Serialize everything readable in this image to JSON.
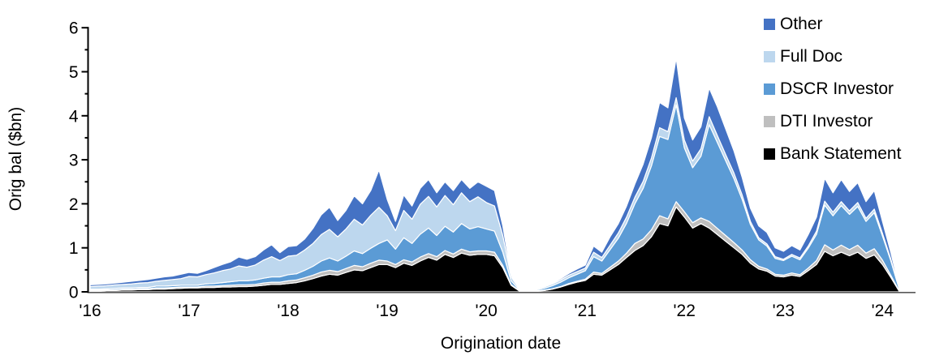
{
  "chart": {
    "y_axis": {
      "title": "Orig bal ($bn)",
      "ticks": [
        "0",
        "1",
        "2",
        "3",
        "4",
        "5",
        "6"
      ],
      "max": 6,
      "minor_step": 0.5
    },
    "x_axis": {
      "title": "Origination date",
      "tick_labels": [
        "'16",
        "'17",
        "'18",
        "'19",
        "'20",
        "'21",
        "'22",
        "'23",
        "'24"
      ]
    },
    "legend": [
      {
        "label": "Other",
        "color": "#4472C4"
      },
      {
        "label": "Full Doc",
        "color": "#BDD7EE"
      },
      {
        "label": "DSCR Investor",
        "color": "#5B9BD5"
      },
      {
        "label": "DTI Investor",
        "color": "#BFBFBF"
      },
      {
        "label": "Bank Statement",
        "color": "#000000"
      }
    ]
  },
  "chart_data": {
    "type": "area",
    "stacked": true,
    "title": "",
    "xlabel": "Origination date",
    "ylabel": "Orig bal ($bn)",
    "ylim": [
      0,
      6
    ],
    "grid": false,
    "legend_position": "top-right",
    "x": [
      "2016-01",
      "2016-02",
      "2016-03",
      "2016-04",
      "2016-05",
      "2016-06",
      "2016-07",
      "2016-08",
      "2016-09",
      "2016-10",
      "2016-11",
      "2016-12",
      "2017-01",
      "2017-02",
      "2017-03",
      "2017-04",
      "2017-05",
      "2017-06",
      "2017-07",
      "2017-08",
      "2017-09",
      "2017-10",
      "2017-11",
      "2017-12",
      "2018-01",
      "2018-02",
      "2018-03",
      "2018-04",
      "2018-05",
      "2018-06",
      "2018-07",
      "2018-08",
      "2018-09",
      "2018-10",
      "2018-11",
      "2018-12",
      "2019-01",
      "2019-02",
      "2019-03",
      "2019-04",
      "2019-05",
      "2019-06",
      "2019-07",
      "2019-08",
      "2019-09",
      "2019-10",
      "2019-11",
      "2019-12",
      "2020-01",
      "2020-02",
      "2020-03",
      "2020-04",
      "2020-05",
      "2020-06",
      "2020-07",
      "2020-08",
      "2020-09",
      "2020-10",
      "2020-11",
      "2020-12",
      "2021-01",
      "2021-02",
      "2021-03",
      "2021-04",
      "2021-05",
      "2021-06",
      "2021-07",
      "2021-08",
      "2021-09",
      "2021-10",
      "2021-11",
      "2021-12",
      "2022-01",
      "2022-02",
      "2022-03",
      "2022-04",
      "2022-05",
      "2022-06",
      "2022-07",
      "2022-08",
      "2022-09",
      "2022-10",
      "2022-11",
      "2022-12",
      "2023-01",
      "2023-02",
      "2023-03",
      "2023-04",
      "2023-05",
      "2023-06",
      "2023-07",
      "2023-08",
      "2023-09",
      "2023-10",
      "2023-11",
      "2023-12",
      "2024-01",
      "2024-02",
      "2024-03"
    ],
    "series": [
      {
        "name": "Bank Statement",
        "color": "#000000",
        "values": [
          0.02,
          0.02,
          0.03,
          0.03,
          0.04,
          0.04,
          0.05,
          0.05,
          0.06,
          0.06,
          0.07,
          0.08,
          0.09,
          0.09,
          0.1,
          0.1,
          0.11,
          0.11,
          0.12,
          0.12,
          0.13,
          0.15,
          0.17,
          0.17,
          0.19,
          0.21,
          0.25,
          0.3,
          0.36,
          0.4,
          0.38,
          0.44,
          0.5,
          0.48,
          0.55,
          0.62,
          0.62,
          0.55,
          0.65,
          0.6,
          0.7,
          0.78,
          0.72,
          0.85,
          0.78,
          0.88,
          0.83,
          0.85,
          0.85,
          0.82,
          0.55,
          0.15,
          0.02,
          0.01,
          0.02,
          0.03,
          0.06,
          0.11,
          0.17,
          0.22,
          0.26,
          0.4,
          0.38,
          0.5,
          0.62,
          0.78,
          0.94,
          1.05,
          1.25,
          1.55,
          1.5,
          1.93,
          1.7,
          1.45,
          1.55,
          1.45,
          1.3,
          1.15,
          1.0,
          0.85,
          0.65,
          0.52,
          0.47,
          0.36,
          0.34,
          0.38,
          0.35,
          0.48,
          0.62,
          0.92,
          0.82,
          0.9,
          0.82,
          0.9,
          0.76,
          0.84,
          0.62,
          0.33,
          0.02
        ]
      },
      {
        "name": "DTI Investor",
        "color": "#BFBFBF",
        "values": [
          0.02,
          0.02,
          0.02,
          0.02,
          0.02,
          0.02,
          0.02,
          0.02,
          0.03,
          0.03,
          0.03,
          0.03,
          0.02,
          0.02,
          0.03,
          0.03,
          0.03,
          0.04,
          0.04,
          0.04,
          0.04,
          0.05,
          0.05,
          0.05,
          0.06,
          0.06,
          0.07,
          0.08,
          0.09,
          0.09,
          0.08,
          0.09,
          0.1,
          0.09,
          0.1,
          0.1,
          0.08,
          0.07,
          0.08,
          0.08,
          0.09,
          0.09,
          0.08,
          0.09,
          0.08,
          0.09,
          0.08,
          0.08,
          0.08,
          0.08,
          0.05,
          0.02,
          0.01,
          0.01,
          0.01,
          0.01,
          0.01,
          0.01,
          0.02,
          0.02,
          0.03,
          0.05,
          0.04,
          0.06,
          0.08,
          0.1,
          0.16,
          0.15,
          0.16,
          0.18,
          0.16,
          0.12,
          0.12,
          0.12,
          0.13,
          0.15,
          0.14,
          0.13,
          0.12,
          0.1,
          0.08,
          0.06,
          0.05,
          0.04,
          0.04,
          0.05,
          0.04,
          0.06,
          0.09,
          0.15,
          0.13,
          0.16,
          0.14,
          0.16,
          0.12,
          0.14,
          0.1,
          0.05,
          0.01
        ]
      },
      {
        "name": "DSCR Investor",
        "color": "#5B9BD5",
        "values": [
          0.02,
          0.02,
          0.02,
          0.03,
          0.03,
          0.03,
          0.03,
          0.03,
          0.04,
          0.04,
          0.04,
          0.04,
          0.04,
          0.04,
          0.05,
          0.06,
          0.07,
          0.08,
          0.09,
          0.09,
          0.1,
          0.11,
          0.12,
          0.12,
          0.14,
          0.14,
          0.17,
          0.2,
          0.25,
          0.28,
          0.24,
          0.28,
          0.33,
          0.3,
          0.34,
          0.38,
          0.48,
          0.35,
          0.5,
          0.42,
          0.52,
          0.58,
          0.48,
          0.55,
          0.5,
          0.58,
          0.52,
          0.55,
          0.5,
          0.48,
          0.3,
          0.08,
          0.02,
          0.01,
          0.02,
          0.04,
          0.07,
          0.1,
          0.13,
          0.16,
          0.19,
          0.35,
          0.28,
          0.4,
          0.52,
          0.68,
          0.9,
          1.15,
          1.45,
          1.8,
          1.8,
          2.2,
          1.45,
          1.25,
          1.4,
          2.2,
          1.95,
          1.7,
          1.45,
          1.15,
          0.8,
          0.6,
          0.52,
          0.36,
          0.33,
          0.38,
          0.34,
          0.45,
          0.6,
          0.9,
          0.78,
          0.9,
          0.8,
          0.88,
          0.72,
          0.82,
          0.55,
          0.33,
          0.05
        ]
      },
      {
        "name": "Full Doc",
        "color": "#BDD7EE",
        "values": [
          0.06,
          0.07,
          0.07,
          0.08,
          0.08,
          0.09,
          0.1,
          0.11,
          0.11,
          0.13,
          0.14,
          0.15,
          0.2,
          0.19,
          0.21,
          0.24,
          0.27,
          0.29,
          0.34,
          0.31,
          0.34,
          0.41,
          0.46,
          0.37,
          0.42,
          0.42,
          0.46,
          0.52,
          0.6,
          0.65,
          0.55,
          0.62,
          0.72,
          0.65,
          0.75,
          0.82,
          0.55,
          0.42,
          0.62,
          0.55,
          0.68,
          0.72,
          0.65,
          0.7,
          0.62,
          0.7,
          0.62,
          0.68,
          0.6,
          0.57,
          0.38,
          0.1,
          0.02,
          0.01,
          0.02,
          0.03,
          0.04,
          0.05,
          0.06,
          0.06,
          0.06,
          0.1,
          0.08,
          0.1,
          0.12,
          0.14,
          0.15,
          0.16,
          0.18,
          0.2,
          0.18,
          0.16,
          0.18,
          0.15,
          0.17,
          0.18,
          0.16,
          0.14,
          0.13,
          0.1,
          0.07,
          0.05,
          0.05,
          0.04,
          0.03,
          0.04,
          0.04,
          0.05,
          0.07,
          0.09,
          0.08,
          0.09,
          0.08,
          0.09,
          0.07,
          0.08,
          0.06,
          0.04,
          0.01
        ]
      },
      {
        "name": "Other",
        "color": "#4472C4",
        "values": [
          0.04,
          0.04,
          0.04,
          0.04,
          0.05,
          0.06,
          0.06,
          0.07,
          0.07,
          0.08,
          0.08,
          0.1,
          0.09,
          0.08,
          0.09,
          0.12,
          0.14,
          0.16,
          0.2,
          0.18,
          0.19,
          0.23,
          0.27,
          0.18,
          0.22,
          0.22,
          0.25,
          0.34,
          0.45,
          0.5,
          0.37,
          0.42,
          0.53,
          0.48,
          0.56,
          0.85,
          0.37,
          0.21,
          0.35,
          0.3,
          0.36,
          0.38,
          0.32,
          0.31,
          0.32,
          0.3,
          0.3,
          0.34,
          0.37,
          0.35,
          0.22,
          0.05,
          0.01,
          0.01,
          0.01,
          0.01,
          0.02,
          0.03,
          0.04,
          0.06,
          0.07,
          0.14,
          0.12,
          0.19,
          0.21,
          0.25,
          0.3,
          0.39,
          0.46,
          0.57,
          0.54,
          0.9,
          0.5,
          0.48,
          0.5,
          0.65,
          0.65,
          0.58,
          0.5,
          0.4,
          0.3,
          0.27,
          0.26,
          0.2,
          0.18,
          0.2,
          0.18,
          0.26,
          0.32,
          0.52,
          0.44,
          0.5,
          0.44,
          0.45,
          0.38,
          0.42,
          0.27,
          0.15,
          0.03
        ]
      }
    ]
  }
}
